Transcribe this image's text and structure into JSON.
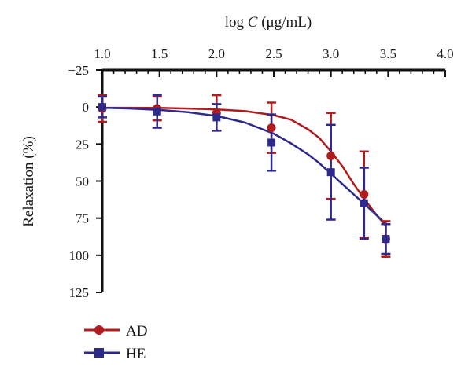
{
  "chart_data": {
    "type": "scatter",
    "xlabel_prefix": "log ",
    "xlabel_var": "C",
    "xlabel_suffix": " (μg/mL)",
    "ylabel": "Relaxation (%)",
    "xlim": [
      1.0,
      4.0
    ],
    "ylim": [
      -25,
      125
    ],
    "x_ticks": [
      "1.0",
      "1.5",
      "2.0",
      "2.5",
      "3.0",
      "3.5",
      "4.0"
    ],
    "y_ticks": [
      "−25",
      "0",
      "25",
      "50",
      "75",
      "100",
      "125"
    ],
    "y_inverted": true,
    "x_axis_position": "top",
    "grid": false,
    "legend_position": "bottom-left",
    "series": [
      {
        "name": "AD",
        "color": "#b01c1c",
        "marker": "circle",
        "x": [
          1.0,
          1.48,
          2.0,
          2.48,
          3.0,
          3.29,
          3.48
        ],
        "y": [
          1,
          1,
          4,
          14,
          33,
          59,
          89
        ],
        "err": [
          9,
          8,
          12,
          17,
          29,
          29,
          12
        ],
        "curve_x": [
          1.0,
          1.25,
          1.5,
          1.75,
          2.0,
          2.25,
          2.5,
          2.65,
          2.8,
          2.9,
          3.0,
          3.1,
          3.2,
          3.3,
          3.4,
          3.48
        ],
        "curve_y": [
          0.5,
          0.5,
          0.6,
          1,
          1.6,
          2.8,
          5.5,
          8.5,
          15,
          21,
          30,
          40,
          52,
          63,
          73,
          80
        ]
      },
      {
        "name": "HE",
        "color": "#2e2a8c",
        "marker": "square",
        "x": [
          1.0,
          1.48,
          2.0,
          2.48,
          3.0,
          3.29,
          3.48
        ],
        "y": [
          0,
          3,
          7,
          24,
          44,
          65,
          89
        ],
        "err": [
          7,
          11,
          9,
          19,
          32,
          24,
          10
        ],
        "curve_x": [
          1.0,
          1.25,
          1.5,
          1.75,
          2.0,
          2.25,
          2.5,
          2.65,
          2.8,
          2.9,
          3.0,
          3.1,
          3.2,
          3.3,
          3.4,
          3.48
        ],
        "curve_y": [
          0.5,
          1,
          2,
          3.5,
          6,
          10.5,
          18,
          24.5,
          32,
          38,
          45,
          52,
          59,
          66,
          73,
          79
        ]
      }
    ]
  }
}
